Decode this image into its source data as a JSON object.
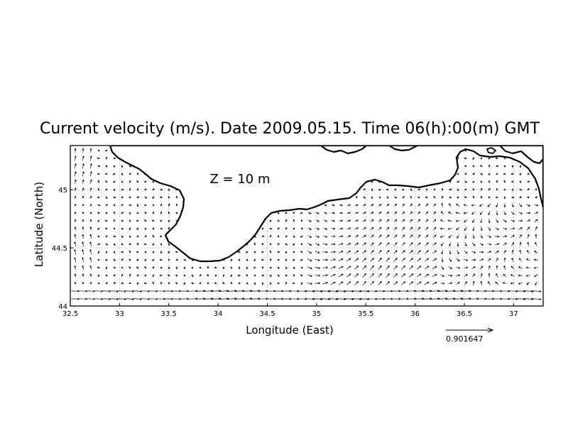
{
  "chart_data": {
    "type": "vector-field",
    "title": "Current velocity (m/s). Date 2009.05.15. Time 06(h):00(m) GMT",
    "xlabel": "Longitude (East)",
    "ylabel": "Latitude (North)",
    "annotation": "Z = 10 m",
    "xlim": [
      32.5,
      37.3
    ],
    "ylim": [
      44.0,
      45.38
    ],
    "xticks": [
      32.5,
      33,
      33.5,
      34,
      34.5,
      35,
      35.5,
      36,
      36.5,
      37
    ],
    "xtick_labels": [
      "32.5",
      "33",
      "33.5",
      "34",
      "34.5",
      "35",
      "35.5",
      "36",
      "36.5",
      "37"
    ],
    "yticks": [
      44,
      44.5,
      45
    ],
    "ytick_labels": [
      "44",
      "44.5",
      "45"
    ],
    "grid": "dotted",
    "reference_vector": {
      "label": "0.901647",
      "value": 0.901647
    },
    "land_color": "#ffffff",
    "coastline_color": "#000000",
    "arrow_color": "#000000"
  }
}
